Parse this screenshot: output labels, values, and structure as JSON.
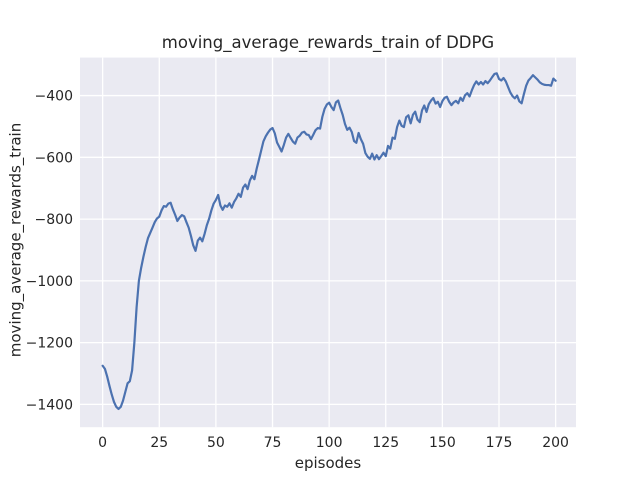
{
  "chart_data": {
    "type": "line",
    "title": "moving_average_rewards_train of DDPG",
    "xlabel": "episodes",
    "ylabel": "moving_average_rewards_train",
    "legend": null,
    "grid": true,
    "plot_bg_color": "#eaeaf2",
    "grid_color": "#ffffff",
    "line_color": "#4c72b0",
    "text_color": "#262626",
    "xticks": [
      0,
      25,
      50,
      75,
      100,
      125,
      150,
      175,
      200
    ],
    "yticks": [
      -400,
      -600,
      -800,
      -1000,
      -1200,
      -1400
    ],
    "xlim": [
      -10,
      209
    ],
    "ylim": [
      -1474,
      -277
    ],
    "series_name": "moving_average_rewards_train",
    "x": [
      0,
      1,
      2,
      3,
      4,
      5,
      6,
      7,
      8,
      9,
      10,
      11,
      12,
      13,
      14,
      15,
      16,
      17,
      18,
      19,
      20,
      21,
      22,
      23,
      24,
      25,
      26,
      27,
      28,
      29,
      30,
      31,
      32,
      33,
      34,
      35,
      36,
      37,
      38,
      39,
      40,
      41,
      42,
      43,
      44,
      45,
      46,
      47,
      48,
      49,
      50,
      51,
      52,
      53,
      54,
      55,
      56,
      57,
      58,
      59,
      60,
      61,
      62,
      63,
      64,
      65,
      66,
      67,
      68,
      69,
      70,
      71,
      72,
      73,
      74,
      75,
      76,
      77,
      78,
      79,
      80,
      81,
      82,
      83,
      84,
      85,
      86,
      87,
      88,
      89,
      90,
      91,
      92,
      93,
      94,
      95,
      96,
      97,
      98,
      99,
      100,
      101,
      102,
      103,
      104,
      105,
      106,
      107,
      108,
      109,
      110,
      111,
      112,
      113,
      114,
      115,
      116,
      117,
      118,
      119,
      120,
      121,
      122,
      123,
      124,
      125,
      126,
      127,
      128,
      129,
      130,
      131,
      132,
      133,
      134,
      135,
      136,
      137,
      138,
      139,
      140,
      141,
      142,
      143,
      144,
      145,
      146,
      147,
      148,
      149,
      150,
      151,
      152,
      153,
      154,
      155,
      156,
      157,
      158,
      159,
      160,
      161,
      162,
      163,
      164,
      165,
      166,
      167,
      168,
      169,
      170,
      171,
      172,
      173,
      174,
      175,
      176,
      177,
      178,
      179,
      180,
      181,
      182,
      183,
      184,
      185,
      186,
      187,
      188,
      189,
      190,
      191,
      192,
      193,
      194,
      195,
      196,
      197,
      198,
      199,
      200
    ],
    "values": [
      -1275,
      -1285,
      -1310,
      -1340,
      -1368,
      -1392,
      -1408,
      -1415,
      -1408,
      -1388,
      -1360,
      -1332,
      -1325,
      -1290,
      -1200,
      -1085,
      -1000,
      -958,
      -922,
      -890,
      -862,
      -845,
      -828,
      -810,
      -798,
      -792,
      -772,
      -758,
      -760,
      -750,
      -747,
      -768,
      -786,
      -806,
      -795,
      -787,
      -791,
      -810,
      -828,
      -855,
      -885,
      -903,
      -870,
      -860,
      -872,
      -848,
      -820,
      -799,
      -772,
      -750,
      -738,
      -722,
      -756,
      -770,
      -756,
      -760,
      -749,
      -763,
      -745,
      -733,
      -718,
      -728,
      -698,
      -688,
      -703,
      -675,
      -660,
      -671,
      -637,
      -608,
      -578,
      -548,
      -532,
      -520,
      -510,
      -505,
      -522,
      -552,
      -566,
      -581,
      -560,
      -536,
      -524,
      -537,
      -549,
      -556,
      -536,
      -530,
      -520,
      -517,
      -526,
      -528,
      -541,
      -527,
      -512,
      -505,
      -507,
      -469,
      -443,
      -429,
      -423,
      -437,
      -447,
      -422,
      -416,
      -441,
      -463,
      -492,
      -511,
      -504,
      -518,
      -547,
      -553,
      -521,
      -541,
      -556,
      -586,
      -598,
      -605,
      -588,
      -607,
      -593,
      -606,
      -596,
      -585,
      -596,
      -563,
      -572,
      -536,
      -540,
      -502,
      -481,
      -498,
      -502,
      -470,
      -464,
      -490,
      -462,
      -452,
      -478,
      -486,
      -448,
      -432,
      -453,
      -428,
      -416,
      -408,
      -426,
      -420,
      -437,
      -418,
      -407,
      -404,
      -420,
      -431,
      -422,
      -417,
      -425,
      -407,
      -417,
      -399,
      -392,
      -403,
      -383,
      -366,
      -354,
      -364,
      -356,
      -364,
      -353,
      -360,
      -351,
      -340,
      -330,
      -328,
      -346,
      -351,
      -343,
      -354,
      -372,
      -390,
      -402,
      -409,
      -400,
      -419,
      -425,
      -395,
      -368,
      -351,
      -343,
      -334,
      -341,
      -348,
      -357,
      -362,
      -365,
      -366,
      -366,
      -368,
      -345,
      -352
    ]
  }
}
